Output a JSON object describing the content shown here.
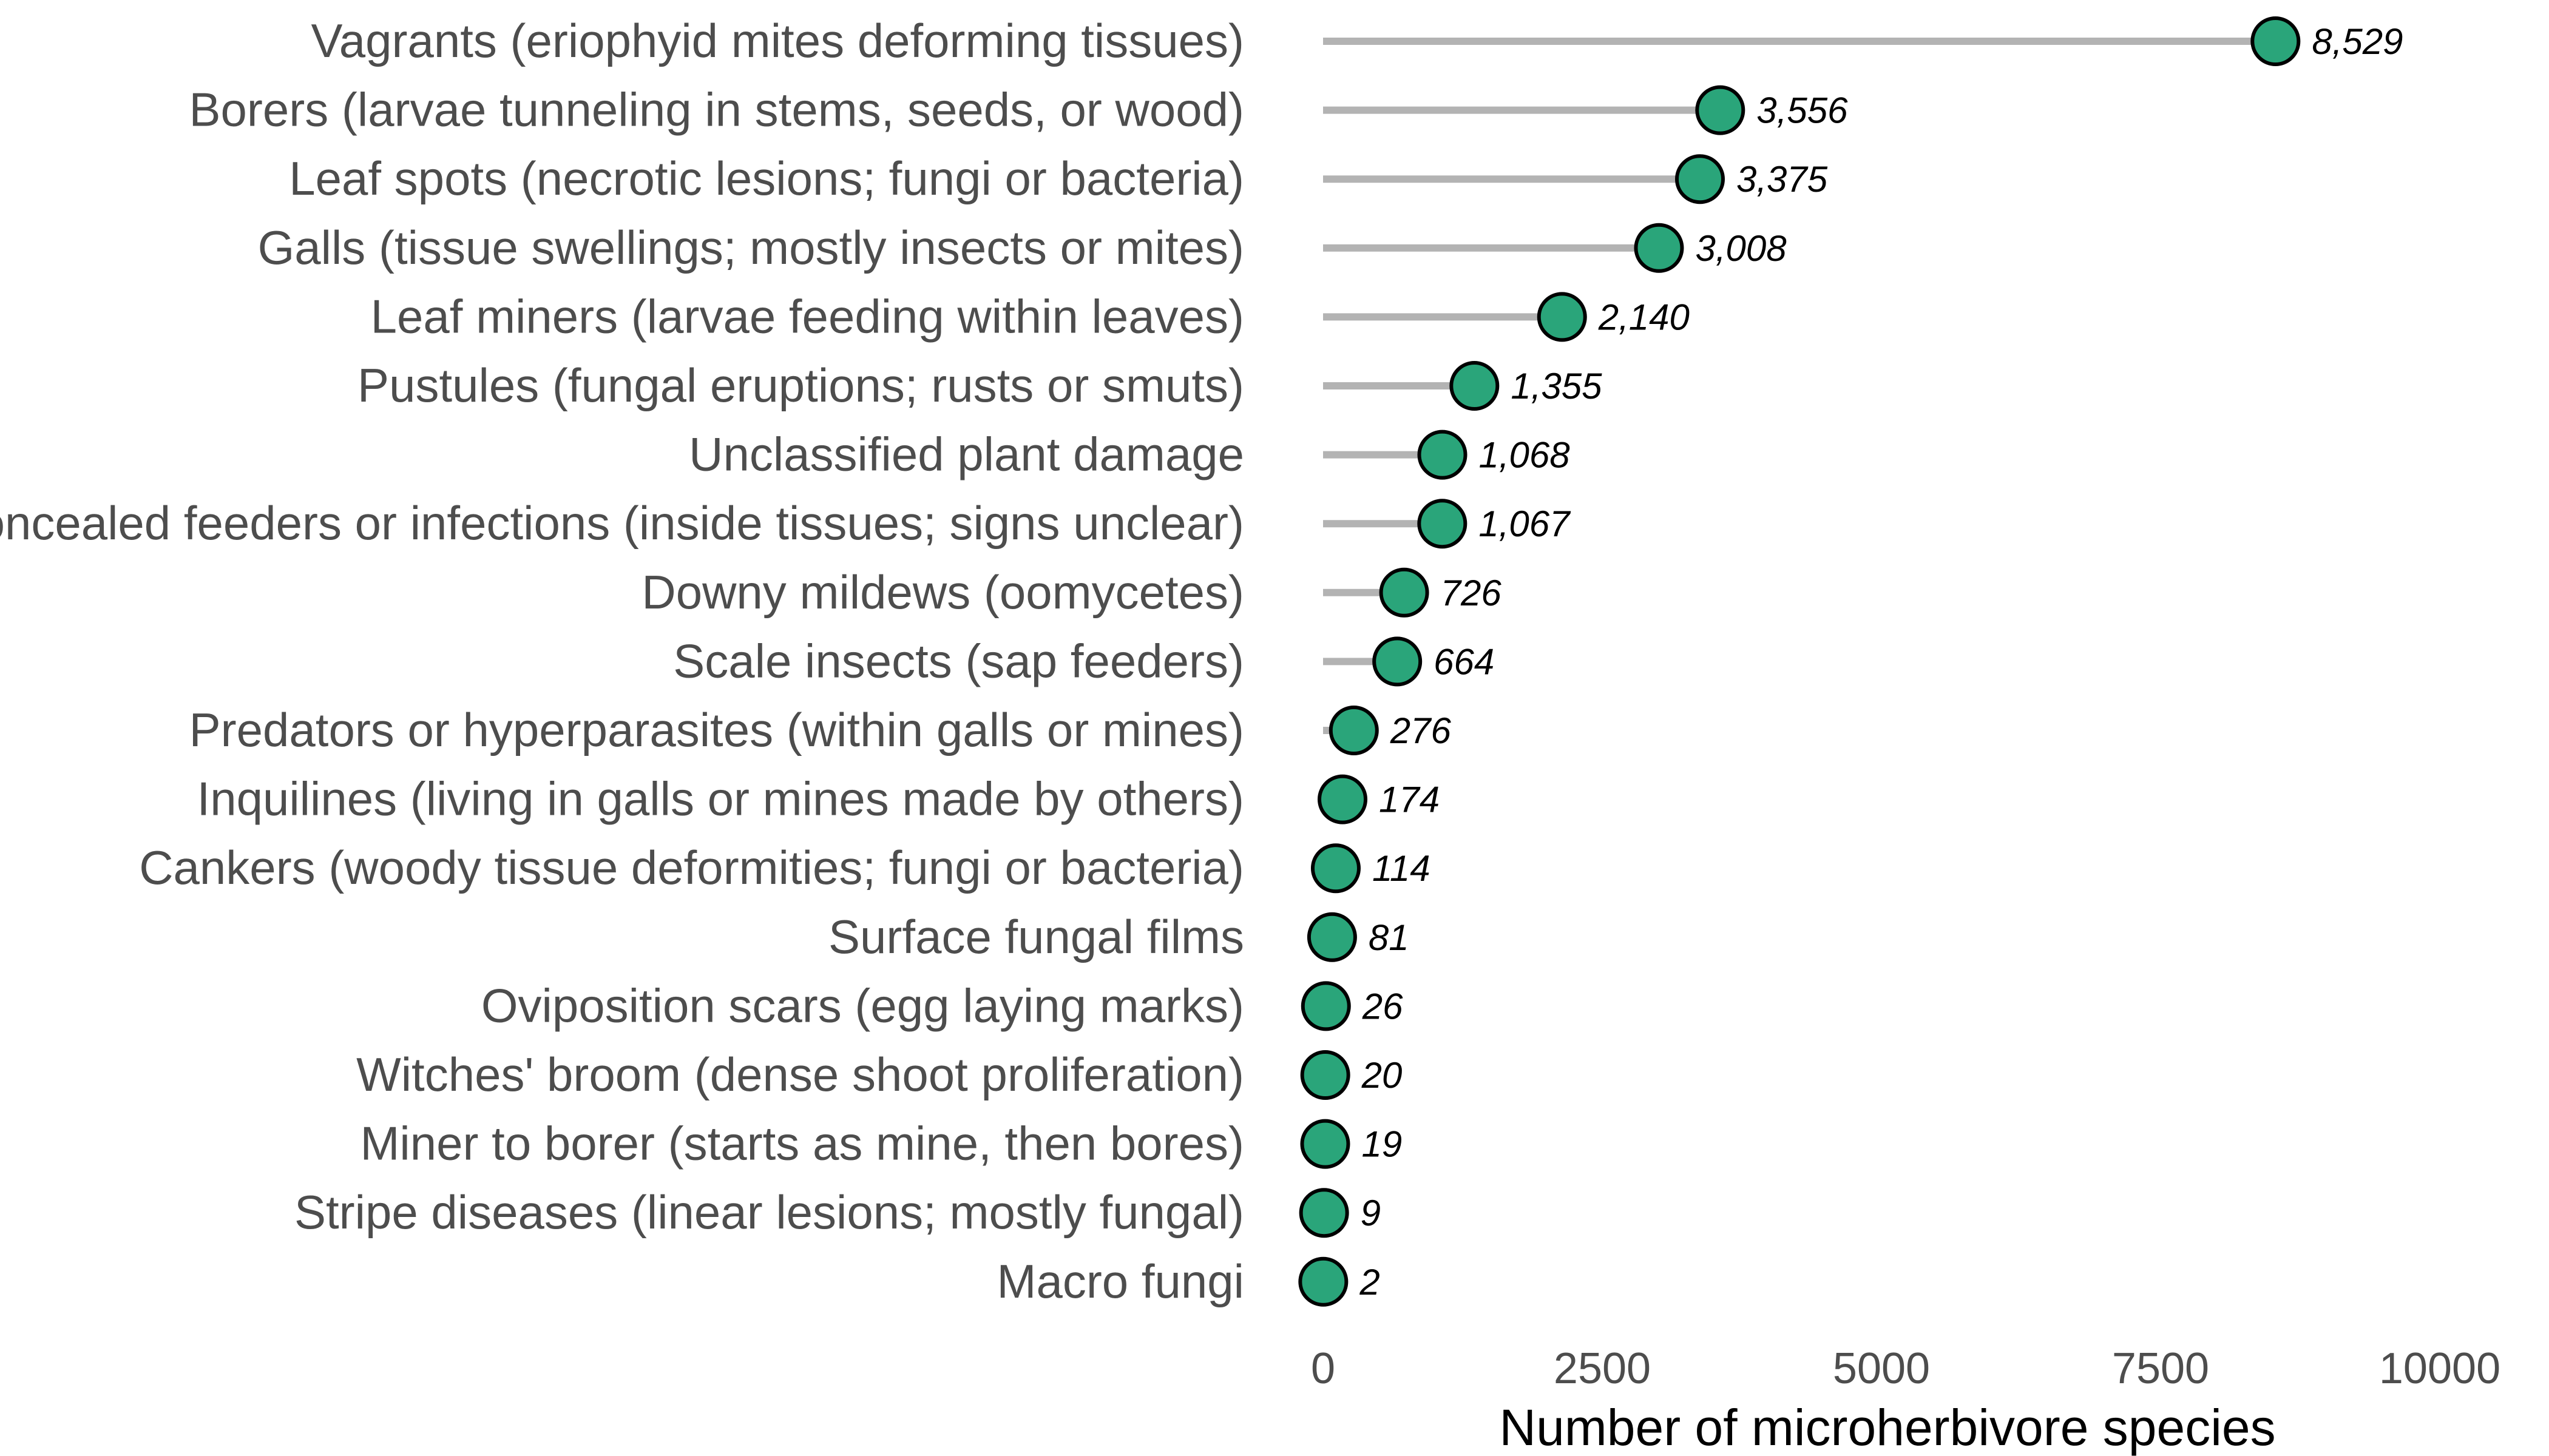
{
  "chart_data": {
    "type": "lollipop",
    "title": "",
    "xlabel": "Number of microherbivore species",
    "ylabel": "",
    "xlim": [
      0,
      10000
    ],
    "xticks": [
      0,
      2500,
      5000,
      7500,
      10000
    ],
    "xtick_labels": [
      "0",
      "2500",
      "5000",
      "7500",
      "10000"
    ],
    "grid": false,
    "legend": "none",
    "colors": {
      "point_fill": "#2aa57a",
      "point_stroke": "#000000",
      "stem": "#b3b3b3"
    },
    "categories": [
      "Vagrants (eriophyid mites deforming tissues)",
      "Borers (larvae tunneling in stems, seeds, or wood)",
      "Leaf spots (necrotic lesions; fungi or bacteria)",
      "Galls (tissue swellings; mostly insects or mites)",
      "Leaf miners (larvae feeding within leaves)",
      "Pustules (fungal eruptions; rusts or smuts)",
      "Unclassified plant damage",
      "Concealed feeders or infections (inside tissues; signs unclear)",
      "Downy mildews (oomycetes)",
      "Scale insects (sap feeders)",
      "Predators or hyperparasites (within galls or mines)",
      "Inquilines (living in galls or mines made by others)",
      "Cankers (woody tissue deformities; fungi or bacteria)",
      "Surface fungal films",
      "Oviposition scars (egg laying marks)",
      "Witches' broom (dense shoot proliferation)",
      "Miner to borer (starts as mine, then bores)",
      "Stripe diseases (linear lesions; mostly fungal)",
      "Macro fungi"
    ],
    "values": [
      8529,
      3556,
      3375,
      3008,
      2140,
      1355,
      1068,
      1067,
      726,
      664,
      276,
      174,
      114,
      81,
      26,
      20,
      19,
      9,
      2
    ],
    "value_labels": [
      "8,529",
      "3,556",
      "3,375",
      "3,008",
      "2,140",
      "1,355",
      "1,068",
      "1,067",
      "726",
      "664",
      "276",
      "174",
      "114",
      "81",
      "26",
      "20",
      "19",
      "9",
      "2"
    ]
  }
}
